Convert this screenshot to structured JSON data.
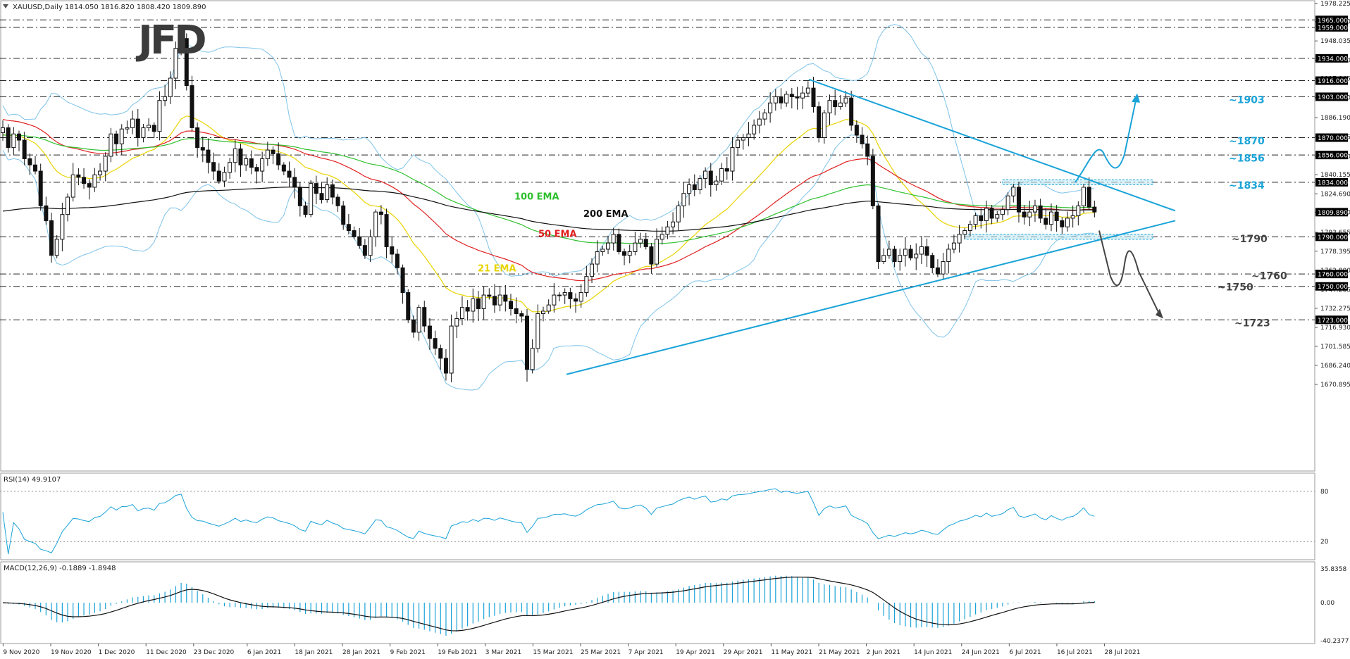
{
  "header": {
    "symbol_info": "XAUUSD,Daily  1814.050 1816.820 1808.420 1809.890",
    "logo": "JFD"
  },
  "chart_data": [
    {
      "type": "candlestick",
      "symbol": "XAUUSD",
      "timeframe": "Daily",
      "ohlc_last": {
        "open": 1814.05,
        "high": 1816.82,
        "low": 1808.42,
        "close": 1809.89
      },
      "ylim": [
        1670.895,
        1978.225
      ],
      "y_ticks": [
        "1978.225",
        "1963.630",
        "1948.035",
        "1932.440",
        "1917.845",
        "1902.250",
        "1886.190",
        "1870.595",
        "1855.000",
        "1840.155",
        "1824.690",
        "1809.890",
        "1793.655",
        "1778.395",
        "1762.800",
        "1747.205",
        "1732.275",
        "1716.930",
        "1701.585",
        "1686.240",
        "1670.895"
      ],
      "x_ticks": [
        "9 Nov 2020",
        "19 Nov 2020",
        "1 Dec 2020",
        "11 Dec 2020",
        "23 Dec 2020",
        "6 Jan 2021",
        "18 Jan 2021",
        "28 Jan 2021",
        "9 Feb 2021",
        "19 Feb 2021",
        "3 Mar 2021",
        "15 Mar 2021",
        "25 Mar 2021",
        "7 Apr 2021",
        "19 Apr 2021",
        "29 Apr 2021",
        "11 May 2021",
        "21 May 2021",
        "2 Jun 2021",
        "14 Jun 2021",
        "24 Jun 2021",
        "6 Jul 2021",
        "16 Jul 2021",
        "28 Jul 2021"
      ],
      "close_anchors": [
        1878,
        1862,
        1873,
        1868,
        1853,
        1848,
        1843,
        1815,
        1803,
        1775,
        1788,
        1808,
        1822,
        1840,
        1838,
        1833,
        1830,
        1840,
        1843,
        1855,
        1873,
        1865,
        1877,
        1878,
        1885,
        1870,
        1878,
        1880,
        1875,
        1900,
        1903,
        1918,
        1942,
        1950,
        1912,
        1878,
        1862,
        1860,
        1850,
        1843,
        1835,
        1842,
        1850,
        1861,
        1848,
        1853,
        1846,
        1843,
        1853,
        1860,
        1857,
        1848,
        1843,
        1838,
        1830,
        1815,
        1808,
        1833,
        1825,
        1820,
        1832,
        1822,
        1815,
        1800,
        1795,
        1790,
        1783,
        1775,
        1790,
        1810,
        1808,
        1782,
        1776,
        1765,
        1745,
        1723,
        1713,
        1733,
        1718,
        1708,
        1700,
        1692,
        1680,
        1718,
        1724,
        1733,
        1730,
        1740,
        1732,
        1743,
        1742,
        1735,
        1743,
        1738,
        1732,
        1728,
        1726,
        1683,
        1700,
        1728,
        1730,
        1735,
        1743,
        1743,
        1745,
        1740,
        1738,
        1745,
        1758,
        1768,
        1778,
        1780,
        1785,
        1792,
        1778,
        1775,
        1778,
        1785,
        1788,
        1782,
        1768,
        1788,
        1792,
        1798,
        1802,
        1815,
        1825,
        1832,
        1828,
        1837,
        1843,
        1832,
        1835,
        1845,
        1843,
        1862,
        1868,
        1870,
        1873,
        1880,
        1885,
        1890,
        1898,
        1903,
        1898,
        1905,
        1903,
        1902,
        1906,
        1910,
        1895,
        1870,
        1890,
        1900,
        1895,
        1898,
        1902,
        1880,
        1872,
        1865,
        1855,
        1815,
        1770,
        1775,
        1780,
        1770,
        1775,
        1780,
        1773,
        1776,
        1782,
        1775,
        1765,
        1760,
        1770,
        1780,
        1785,
        1792,
        1795,
        1800,
        1807,
        1803,
        1813,
        1805,
        1808,
        1812,
        1823,
        1830,
        1810,
        1806,
        1810,
        1815,
        1805,
        1800,
        1810,
        1803,
        1798,
        1805,
        1807,
        1815,
        1830,
        1814,
        1810
      ],
      "ema_labels": [
        "21 EMA",
        "50 EMA",
        "100 EMA",
        "200 EMA"
      ],
      "ema_colors": [
        "#e8d400",
        "#e02020",
        "#2ec02e",
        "#111111"
      ],
      "horizontal_levels": [
        1965.0,
        1959.0,
        1934.0,
        1916.0,
        1903.0,
        1870.0,
        1856.0,
        1834.0,
        1790.0,
        1760.0,
        1750.0,
        1723.0
      ],
      "level_tag_labels": [
        "1965.000",
        "1959.000",
        "1934.000",
        "1916.000",
        "1903.000",
        "1870.000",
        "1856.000",
        "1834.000",
        "1790.000",
        "1760.000",
        "1750.000",
        "1723.000"
      ],
      "current_price_label": "1809.890",
      "annotations": [
        {
          "text": "~1903",
          "color": "#1aa3d8"
        },
        {
          "text": "~1870",
          "color": "#1aa3d8"
        },
        {
          "text": "~1856",
          "color": "#1aa3d8"
        },
        {
          "text": "~1834",
          "color": "#1aa3d8"
        },
        {
          "text": "~1790",
          "color": "#444444"
        },
        {
          "text": "~1760",
          "color": "#444444"
        },
        {
          "text": "~1750",
          "color": "#444444"
        },
        {
          "text": "~1723",
          "color": "#444444"
        }
      ],
      "trendline_color": "#1aa3d8",
      "bollinger_color": "#7fc3e8",
      "grid": false
    },
    {
      "type": "line",
      "title": "RSI(14) 49.9107",
      "ylim": [
        0,
        100
      ],
      "levels": [
        "80",
        "20"
      ],
      "color": "#1aa3d8"
    },
    {
      "type": "histogram+line",
      "title": "MACD(12,26,9) -0.1889 -1.8948",
      "y_ticks": [
        "35.8358",
        "0.00",
        "-40.2377"
      ],
      "histogram_color": "#1aa3d8",
      "signal_color": "#111111"
    }
  ]
}
